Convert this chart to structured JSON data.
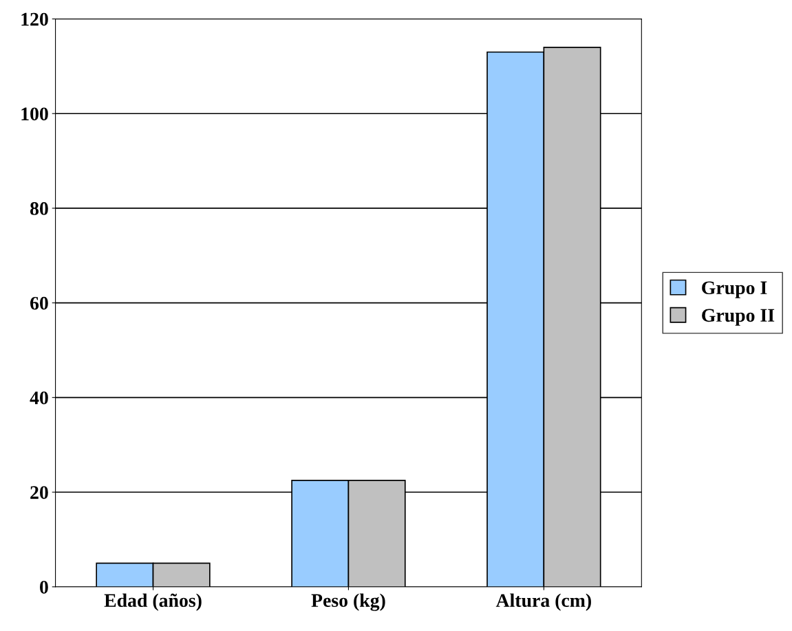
{
  "chart_data": {
    "type": "bar",
    "categories": [
      "Edad (años)",
      "Peso (kg)",
      "Altura (cm)"
    ],
    "series": [
      {
        "name": "Grupo I",
        "color": "#99ccff",
        "values": [
          5,
          22.5,
          113
        ]
      },
      {
        "name": "Grupo II",
        "color": "#c0c0c0",
        "values": [
          5,
          22.5,
          114
        ]
      }
    ],
    "ylim": [
      0,
      120
    ],
    "yticks": [
      0,
      20,
      40,
      60,
      80,
      100,
      120
    ],
    "grid": "y",
    "legend": "right"
  }
}
